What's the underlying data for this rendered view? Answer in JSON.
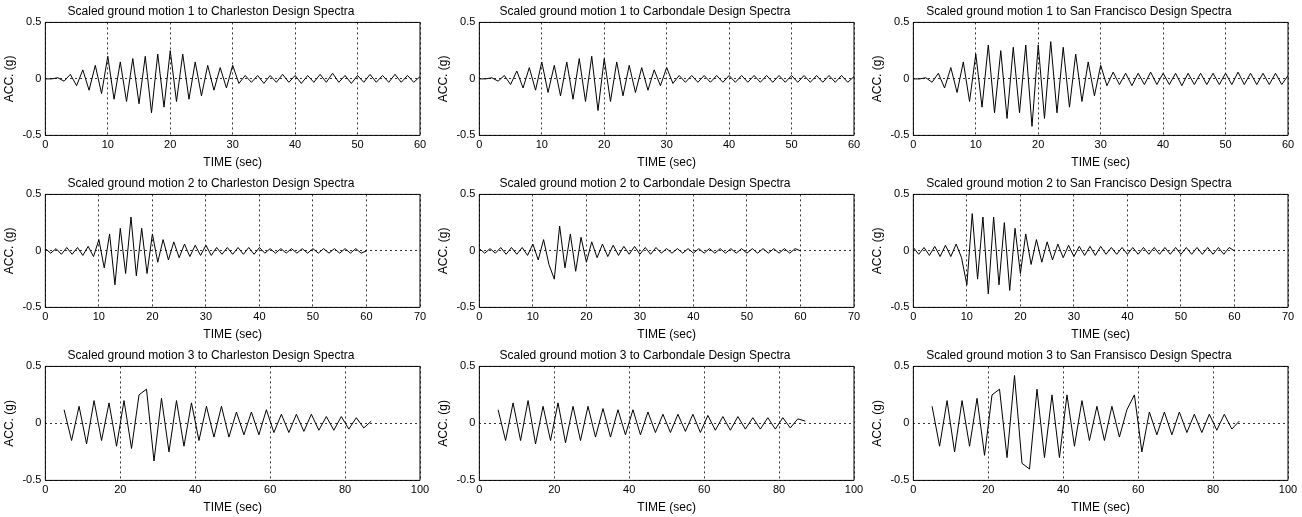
{
  "chart_data": [
    {
      "type": "line",
      "title": "Scaled ground motion 1 to Charleston Design Spectra",
      "xlabel": "TIME (sec)",
      "ylabel": "ACC. (g)",
      "xlim": [
        0,
        60
      ],
      "xticks": [
        0,
        10,
        20,
        30,
        40,
        50,
        60
      ],
      "ylim": [
        -0.5,
        0.5
      ],
      "yticks": [
        -0.5,
        0,
        0.5
      ],
      "grid": true,
      "marker": "none",
      "series": [
        {
          "color": "#000000",
          "x": [
            0,
            1,
            2,
            3,
            4,
            5,
            6,
            7,
            8,
            9,
            10,
            11,
            12,
            13,
            14,
            15,
            16,
            17,
            18,
            19,
            20,
            21,
            22,
            23,
            24,
            25,
            26,
            27,
            28,
            29,
            30,
            31,
            32,
            33,
            34,
            35,
            36,
            37,
            38,
            39,
            40,
            41,
            42,
            43,
            44,
            45,
            46,
            47,
            48,
            49,
            50,
            51,
            52,
            53,
            54,
            55,
            56,
            57,
            58,
            59,
            60
          ],
          "values": [
            0,
            0,
            0.01,
            -0.02,
            0.04,
            -0.06,
            0.08,
            -0.1,
            0.12,
            -0.13,
            0.2,
            -0.18,
            0.15,
            -0.2,
            0.18,
            -0.22,
            0.2,
            -0.3,
            0.22,
            -0.25,
            0.25,
            -0.2,
            0.22,
            -0.18,
            0.15,
            -0.15,
            0.12,
            -0.1,
            0.1,
            -0.08,
            0.12,
            -0.04,
            0.03,
            -0.03,
            0.03,
            -0.04,
            0.03,
            -0.03,
            0.04,
            -0.03,
            0.03,
            -0.04,
            0.03,
            -0.03,
            0.04,
            -0.03,
            0.05,
            -0.03,
            0.03,
            -0.04,
            0.03,
            -0.03,
            0.04,
            -0.03,
            0.03,
            -0.03,
            0.04,
            -0.03,
            0.03,
            -0.03,
            0.02
          ]
        }
      ]
    },
    {
      "type": "line",
      "title": "Scaled ground motion 1 to Carbondale Design Spectra",
      "xlabel": "TIME (sec)",
      "ylabel": "ACC. (g)",
      "xlim": [
        0,
        60
      ],
      "xticks": [
        0,
        10,
        20,
        30,
        40,
        50,
        60
      ],
      "ylim": [
        -0.5,
        0.5
      ],
      "yticks": [
        -0.5,
        0,
        0.5
      ],
      "grid": true,
      "marker": "none",
      "series": [
        {
          "color": "#000000",
          "x": [
            0,
            1,
            2,
            3,
            4,
            5,
            6,
            7,
            8,
            9,
            10,
            11,
            12,
            13,
            14,
            15,
            16,
            17,
            18,
            19,
            20,
            21,
            22,
            23,
            24,
            25,
            26,
            27,
            28,
            29,
            30,
            31,
            32,
            33,
            34,
            35,
            36,
            37,
            38,
            39,
            40,
            41,
            42,
            43,
            44,
            45,
            46,
            47,
            48,
            49,
            50,
            51,
            52,
            53,
            54,
            55,
            56,
            57,
            58,
            59,
            60
          ],
          "values": [
            0,
            0,
            0.01,
            -0.02,
            0.03,
            -0.05,
            0.07,
            -0.08,
            0.1,
            -0.1,
            0.15,
            -0.12,
            0.12,
            -0.15,
            0.15,
            -0.18,
            0.18,
            -0.2,
            0.2,
            -0.28,
            0.18,
            -0.2,
            0.15,
            -0.15,
            0.12,
            -0.12,
            0.1,
            -0.1,
            0.08,
            -0.06,
            0.1,
            -0.04,
            0.03,
            -0.03,
            0.03,
            -0.03,
            0.03,
            -0.03,
            0.03,
            -0.03,
            0.03,
            -0.03,
            0.03,
            -0.03,
            0.03,
            -0.03,
            0.03,
            -0.03,
            0.03,
            -0.03,
            0.03,
            -0.03,
            0.03,
            -0.03,
            0.03,
            -0.03,
            0.03,
            -0.03,
            0.03,
            -0.03,
            0.02
          ]
        }
      ]
    },
    {
      "type": "line",
      "title": "Scaled ground motion 1 to San Francisco Design Spectra",
      "xlabel": "TIME (sec)",
      "ylabel": "ACC. (g)",
      "xlim": [
        0,
        60
      ],
      "xticks": [
        0,
        10,
        20,
        30,
        40,
        50,
        60
      ],
      "ylim": [
        -0.5,
        0.5
      ],
      "yticks": [
        -0.5,
        0,
        0.5
      ],
      "grid": true,
      "marker": "none",
      "series": [
        {
          "color": "#000000",
          "x": [
            0,
            1,
            2,
            3,
            4,
            5,
            6,
            7,
            8,
            9,
            10,
            11,
            12,
            13,
            14,
            15,
            16,
            17,
            18,
            19,
            20,
            21,
            22,
            23,
            24,
            25,
            26,
            27,
            28,
            29,
            30,
            31,
            32,
            33,
            34,
            35,
            36,
            37,
            38,
            39,
            40,
            41,
            42,
            43,
            44,
            45,
            46,
            47,
            48,
            49,
            50,
            51,
            52,
            53,
            54,
            55,
            56,
            57,
            58,
            59,
            60
          ],
          "values": [
            0,
            0,
            0.01,
            -0.03,
            0.05,
            -0.08,
            0.1,
            -0.12,
            0.15,
            -0.2,
            0.22,
            -0.25,
            0.3,
            -0.3,
            0.25,
            -0.35,
            0.28,
            -0.3,
            0.3,
            -0.42,
            0.3,
            -0.35,
            0.33,
            -0.3,
            0.28,
            -0.25,
            0.22,
            -0.2,
            0.15,
            -0.15,
            0.12,
            -0.06,
            0.06,
            -0.05,
            0.05,
            -0.06,
            0.05,
            -0.05,
            0.06,
            -0.05,
            0.05,
            -0.05,
            0.05,
            -0.06,
            0.05,
            -0.05,
            0.05,
            -0.05,
            0.05,
            -0.05,
            0.05,
            -0.05,
            0.06,
            -0.05,
            0.05,
            -0.05,
            0.05,
            -0.05,
            0.05,
            -0.05,
            0.03
          ]
        }
      ]
    },
    {
      "type": "line",
      "title": "Scaled ground motion 2 to Charleston Design Spectra",
      "xlabel": "TIME (sec)",
      "ylabel": "ACC. (g)",
      "xlim": [
        0,
        70
      ],
      "xticks": [
        0,
        10,
        20,
        30,
        40,
        50,
        60,
        70
      ],
      "ylim": [
        -0.5,
        0.5
      ],
      "yticks": [
        -0.5,
        0,
        0.5
      ],
      "grid": true,
      "marker": "none",
      "series": [
        {
          "color": "#000000",
          "x": [
            0,
            1,
            2,
            3,
            4,
            5,
            6,
            7,
            8,
            9,
            10,
            11,
            12,
            13,
            14,
            15,
            16,
            17,
            18,
            19,
            20,
            21,
            22,
            23,
            24,
            25,
            26,
            27,
            28,
            29,
            30,
            31,
            32,
            33,
            34,
            35,
            36,
            37,
            38,
            39,
            40,
            41,
            42,
            43,
            44,
            45,
            46,
            47,
            48,
            49,
            50,
            51,
            52,
            53,
            54,
            55,
            56,
            57,
            58,
            59,
            60
          ],
          "values": [
            0.02,
            -0.02,
            0.02,
            -0.03,
            0.03,
            -0.03,
            0.03,
            -0.04,
            0.04,
            -0.05,
            0.1,
            -0.15,
            0.15,
            -0.3,
            0.2,
            -0.2,
            0.3,
            -0.22,
            0.2,
            -0.2,
            0.15,
            -0.1,
            0.1,
            -0.08,
            0.08,
            -0.06,
            0.06,
            -0.05,
            0.05,
            -0.04,
            0.05,
            -0.04,
            0.03,
            -0.03,
            0.03,
            -0.03,
            0.03,
            -0.03,
            0.03,
            -0.03,
            0.03,
            -0.02,
            0.02,
            -0.02,
            0.02,
            -0.02,
            0.02,
            -0.02,
            0.02,
            -0.02,
            0.02,
            -0.02,
            0.02,
            -0.02,
            0.02,
            -0.02,
            0.02,
            -0.02,
            0.02,
            -0.02,
            0
          ]
        }
      ]
    },
    {
      "type": "line",
      "title": "Scaled ground motion 2 to Carbondale Design Spectra",
      "xlabel": "TIME (sec)",
      "ylabel": "ACC. (g)",
      "xlim": [
        0,
        70
      ],
      "xticks": [
        0,
        10,
        20,
        30,
        40,
        50,
        60,
        70
      ],
      "ylim": [
        -0.5,
        0.5
      ],
      "yticks": [
        -0.5,
        0,
        0.5
      ],
      "grid": true,
      "marker": "none",
      "series": [
        {
          "color": "#000000",
          "x": [
            0,
            1,
            2,
            3,
            4,
            5,
            6,
            7,
            8,
            9,
            10,
            11,
            12,
            13,
            14,
            15,
            16,
            17,
            18,
            19,
            20,
            21,
            22,
            23,
            24,
            25,
            26,
            27,
            28,
            29,
            30,
            31,
            32,
            33,
            34,
            35,
            36,
            37,
            38,
            39,
            40,
            41,
            42,
            43,
            44,
            45,
            46,
            47,
            48,
            49,
            50,
            51,
            52,
            53,
            54,
            55,
            56,
            57,
            58,
            59,
            60
          ],
          "values": [
            0.02,
            -0.02,
            0.02,
            -0.02,
            0.03,
            -0.03,
            0.03,
            -0.03,
            0.03,
            -0.04,
            0.06,
            -0.08,
            0.1,
            -0.12,
            -0.25,
            0.22,
            -0.15,
            0.15,
            -0.18,
            0.12,
            -0.1,
            0.08,
            -0.06,
            0.06,
            -0.05,
            0.05,
            -0.04,
            0.04,
            -0.03,
            0.04,
            -0.03,
            0.03,
            -0.03,
            0.03,
            -0.02,
            0.02,
            -0.02,
            0.02,
            -0.02,
            0.02,
            -0.02,
            0.02,
            -0.02,
            0.02,
            -0.02,
            0.02,
            -0.02,
            0.02,
            -0.02,
            0.02,
            -0.02,
            0.02,
            -0.02,
            0.02,
            -0.02,
            0.02,
            -0.02,
            0.02,
            -0.02,
            0.02,
            0
          ]
        }
      ]
    },
    {
      "type": "line",
      "title": "Scaled ground motion 2 to San Francisco Design Spectra",
      "xlabel": "TIME (sec)",
      "ylabel": "ACC. (g)",
      "xlim": [
        0,
        70
      ],
      "xticks": [
        0,
        10,
        20,
        30,
        40,
        50,
        60,
        70
      ],
      "ylim": [
        -0.5,
        0.5
      ],
      "yticks": [
        -0.5,
        0,
        0.5
      ],
      "grid": true,
      "marker": "none",
      "series": [
        {
          "color": "#000000",
          "x": [
            0,
            1,
            2,
            3,
            4,
            5,
            6,
            7,
            8,
            9,
            10,
            11,
            12,
            13,
            14,
            15,
            16,
            17,
            18,
            19,
            20,
            21,
            22,
            23,
            24,
            25,
            26,
            27,
            28,
            29,
            30,
            31,
            32,
            33,
            34,
            35,
            36,
            37,
            38,
            39,
            40,
            41,
            42,
            43,
            44,
            45,
            46,
            47,
            48,
            49,
            50,
            51,
            52,
            53,
            54,
            55,
            56,
            57,
            58,
            59,
            60
          ],
          "values": [
            0.03,
            -0.03,
            0.03,
            -0.04,
            0.04,
            -0.05,
            0.05,
            -0.05,
            0.06,
            -0.06,
            -0.3,
            0.33,
            -0.25,
            0.3,
            -0.38,
            0.3,
            -0.3,
            0.25,
            -0.35,
            0.2,
            -0.2,
            0.15,
            -0.12,
            0.1,
            -0.1,
            0.08,
            -0.08,
            0.06,
            -0.06,
            0.05,
            -0.05,
            0.04,
            -0.04,
            0.04,
            -0.04,
            0.04,
            -0.03,
            0.03,
            -0.03,
            0.03,
            -0.03,
            0.03,
            -0.03,
            0.03,
            -0.03,
            0.03,
            -0.03,
            0.03,
            -0.03,
            0.03,
            -0.03,
            0.03,
            -0.03,
            0.03,
            -0.03,
            0.03,
            -0.03,
            0.03,
            -0.03,
            0.03,
            0
          ]
        }
      ]
    },
    {
      "type": "line",
      "title": "Scaled ground motion 3 to Charleston Design Spectra",
      "xlabel": "TIME (sec)",
      "ylabel": "ACC. (g)",
      "xlim": [
        0,
        100
      ],
      "xticks": [
        0,
        20,
        40,
        60,
        80,
        100
      ],
      "ylim": [
        -0.5,
        0.5
      ],
      "yticks": [
        -0.5,
        0,
        0.5
      ],
      "grid": true,
      "marker": "none",
      "series": [
        {
          "color": "#000000",
          "x": [
            5,
            7,
            9,
            11,
            13,
            15,
            17,
            19,
            21,
            23,
            25,
            27,
            29,
            31,
            33,
            35,
            37,
            39,
            41,
            43,
            45,
            47,
            49,
            51,
            53,
            55,
            57,
            59,
            61,
            63,
            65,
            67,
            69,
            71,
            73,
            75,
            77,
            79,
            81,
            83,
            85,
            87
          ],
          "values": [
            0.12,
            -0.15,
            0.15,
            -0.18,
            0.2,
            -0.15,
            0.18,
            -0.2,
            0.2,
            -0.22,
            0.25,
            0.3,
            -0.33,
            0.22,
            -0.25,
            0.2,
            -0.2,
            0.18,
            -0.15,
            0.15,
            -0.12,
            0.15,
            -0.12,
            0.1,
            -0.1,
            0.1,
            -0.1,
            0.12,
            -0.08,
            0.08,
            -0.08,
            0.08,
            -0.07,
            0.08,
            -0.06,
            0.06,
            -0.06,
            0.06,
            -0.05,
            0.05,
            -0.04,
            0.02
          ]
        }
      ]
    },
    {
      "type": "line",
      "title": "Scaled ground motion 3 to Carbondale Design Spectra",
      "xlabel": "TIME (sec)",
      "ylabel": "ACC. (g)",
      "xlim": [
        0,
        100
      ],
      "xticks": [
        0,
        20,
        40,
        60,
        80,
        100
      ],
      "ylim": [
        -0.5,
        0.5
      ],
      "yticks": [
        -0.5,
        0,
        0.5
      ],
      "grid": true,
      "marker": "none",
      "series": [
        {
          "color": "#000000",
          "x": [
            5,
            7,
            9,
            11,
            13,
            15,
            17,
            19,
            21,
            23,
            25,
            27,
            29,
            31,
            33,
            35,
            37,
            39,
            41,
            43,
            45,
            47,
            49,
            51,
            53,
            55,
            57,
            59,
            61,
            63,
            65,
            67,
            69,
            71,
            73,
            75,
            77,
            79,
            81,
            83,
            85,
            87
          ],
          "values": [
            0.12,
            -0.15,
            0.18,
            -0.15,
            0.2,
            -0.18,
            0.15,
            -0.15,
            0.18,
            -0.17,
            0.15,
            -0.15,
            0.15,
            -0.12,
            0.13,
            -0.12,
            0.12,
            -0.1,
            0.12,
            -0.1,
            0.1,
            -0.08,
            0.08,
            -0.08,
            0.08,
            -0.07,
            0.08,
            -0.08,
            0.07,
            -0.06,
            0.06,
            -0.06,
            0.06,
            -0.05,
            0.05,
            -0.05,
            0.05,
            -0.05,
            0.05,
            -0.04,
            0.04,
            0.02
          ]
        }
      ]
    },
    {
      "type": "line",
      "title": "Scaled ground motion 3 to San Fransisco Design Spectra",
      "xlabel": "TIME (sec)",
      "ylabel": "ACC. (g)",
      "xlim": [
        0,
        100
      ],
      "xticks": [
        0,
        20,
        40,
        60,
        80,
        100
      ],
      "ylim": [
        -0.5,
        0.5
      ],
      "yticks": [
        -0.5,
        0,
        0.5
      ],
      "grid": true,
      "marker": "none",
      "series": [
        {
          "color": "#000000",
          "x": [
            5,
            7,
            9,
            11,
            13,
            15,
            17,
            19,
            21,
            23,
            25,
            27,
            29,
            31,
            33,
            35,
            37,
            39,
            41,
            43,
            45,
            47,
            49,
            51,
            53,
            55,
            57,
            59,
            61,
            63,
            65,
            67,
            69,
            71,
            73,
            75,
            77,
            79,
            81,
            83,
            85,
            87
          ],
          "values": [
            0.15,
            -0.2,
            0.2,
            -0.25,
            0.2,
            -0.2,
            0.22,
            -0.28,
            0.25,
            0.3,
            -0.3,
            0.42,
            -0.35,
            -0.4,
            0.3,
            -0.3,
            0.25,
            -0.3,
            0.25,
            -0.2,
            0.2,
            -0.15,
            0.15,
            -0.15,
            0.15,
            -0.12,
            0.12,
            0.25,
            -0.25,
            0.1,
            -0.1,
            0.1,
            -0.1,
            0.1,
            -0.08,
            0.08,
            -0.08,
            0.08,
            -0.06,
            0.08,
            -0.05,
            0.02
          ]
        }
      ]
    }
  ]
}
